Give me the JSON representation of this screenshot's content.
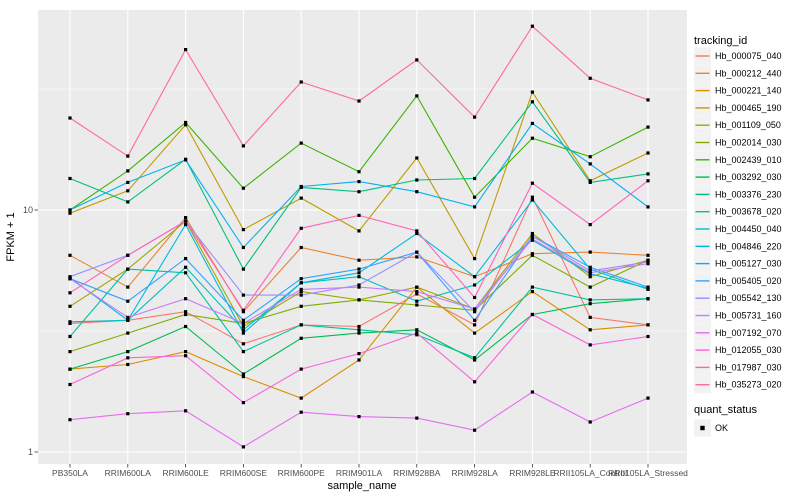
{
  "figure": {
    "x_axis_title": "sample_name",
    "y_axis_title": "FPKM + 1",
    "y_tick_labels": [
      "10",
      "1"
    ],
    "legend_tracking_title": "tracking_id",
    "legend_quant_title": "quant_status",
    "legend_quant_items": [
      "OK"
    ]
  },
  "colors": {
    "panel_bg": "#EBEBEB",
    "grid": "#FFFFFF",
    "tick_mark": "#333333",
    "tick_label": "#4D4D4D",
    "axis_title": "#000000",
    "legend_key_bg": "#F2F2F2",
    "marker": "#000000"
  },
  "chart_data": {
    "type": "line",
    "title": "",
    "xlabel": "sample_name",
    "ylabel": "FPKM + 1",
    "y_scale": "log10",
    "y_axis_ticks": [
      10,
      1
    ],
    "y_minor_gridlines": [
      31.623,
      3.1623
    ],
    "ylim_approx": [
      1,
      65
    ],
    "grid": true,
    "legend_position": "right",
    "marker_legend": {
      "title": "quant_status",
      "items": [
        {
          "label": "OK",
          "shape": "filled-black-square"
        }
      ]
    },
    "categories": [
      "PB350LA",
      "RRIM600LA",
      "RRIM600LE",
      "RRIM600SE",
      "RRIM600PE",
      "RRIM901LA",
      "RRIM928BA",
      "RRIM928LA",
      "RRIM928LE",
      "RRII105LA_Control",
      "RRII105LA_Stressed"
    ],
    "series": [
      {
        "name": "Hb_000075_040",
        "color": "#F8766D",
        "values": [
          3.4,
          3.5,
          3.8,
          2.8,
          3.35,
          3.3,
          4.5,
          3.35,
          11.3,
          3.6,
          3.35
        ]
      },
      {
        "name": "Hb_000212_440",
        "color": "#EA8331",
        "values": [
          6.5,
          4.8,
          9.3,
          3.8,
          7.0,
          6.2,
          6.4,
          5.3,
          6.6,
          6.7,
          6.5
        ]
      },
      {
        "name": "Hb_000221_140",
        "color": "#D89000",
        "values": [
          2.2,
          2.3,
          2.6,
          2.05,
          1.67,
          2.4,
          4.8,
          3.1,
          4.6,
          3.2,
          3.35
        ]
      },
      {
        "name": "Hb_000465_190",
        "color": "#C09B00",
        "values": [
          9.7,
          12.0,
          22.5,
          8.3,
          11.2,
          8.2,
          16.4,
          6.3,
          30.7,
          13.2,
          17.2
        ]
      },
      {
        "name": "Hb_001109_050",
        "color": "#A3A500",
        "values": [
          4.0,
          5.7,
          9.0,
          3.3,
          4.6,
          4.25,
          4.8,
          3.9,
          8.0,
          5.3,
          6.2
        ]
      },
      {
        "name": "Hb_002014_030",
        "color": "#7CAE00",
        "values": [
          2.6,
          3.1,
          3.7,
          3.4,
          4.0,
          4.25,
          4.05,
          3.85,
          6.5,
          4.8,
          6.2
        ]
      },
      {
        "name": "Hb_002439_010",
        "color": "#39B600",
        "values": [
          10.0,
          14.5,
          23.0,
          12.3,
          18.9,
          14.4,
          29.6,
          11.3,
          19.8,
          16.6,
          22.0
        ]
      },
      {
        "name": "Hb_003292_030",
        "color": "#00BB4E",
        "values": [
          2.2,
          2.6,
          3.3,
          2.1,
          2.95,
          3.1,
          3.2,
          2.4,
          3.7,
          4.1,
          4.3
        ]
      },
      {
        "name": "Hb_003376_230",
        "color": "#00BF7D",
        "values": [
          13.5,
          10.8,
          16.2,
          5.7,
          12.4,
          11.9,
          13.3,
          13.5,
          28.0,
          13.0,
          14.1
        ]
      },
      {
        "name": "Hb_003678_020",
        "color": "#00C1A3",
        "values": [
          3.0,
          5.7,
          5.5,
          2.6,
          3.35,
          3.2,
          3.05,
          2.45,
          4.8,
          4.25,
          4.3
        ]
      },
      {
        "name": "Hb_004450_040",
        "color": "#00BFC4",
        "values": [
          3.45,
          3.5,
          5.8,
          3.2,
          5.0,
          5.3,
          4.2,
          4.9,
          7.5,
          5.45,
          4.75
        ]
      },
      {
        "name": "Hb_004846_220",
        "color": "#00BAE0",
        "values": [
          5.25,
          3.5,
          8.7,
          3.1,
          5.0,
          5.5,
          8.0,
          5.3,
          11.0,
          5.7,
          4.7
        ]
      },
      {
        "name": "Hb_005127_030",
        "color": "#00B0F6",
        "values": [
          10.0,
          13.0,
          16.1,
          7.0,
          12.5,
          13.1,
          11.9,
          10.3,
          22.8,
          15.5,
          10.3
        ]
      },
      {
        "name": "Hb_005405_020",
        "color": "#35A2FF",
        "values": [
          5.2,
          4.2,
          6.3,
          3.5,
          5.2,
          5.7,
          6.7,
          3.5,
          7.8,
          5.8,
          4.8
        ]
      },
      {
        "name": "Hb_005542_130",
        "color": "#9590FF",
        "values": [
          5.3,
          6.5,
          9.0,
          4.45,
          4.45,
          4.9,
          6.7,
          3.8,
          7.8,
          5.6,
          6.1
        ]
      },
      {
        "name": "Hb_005731_160",
        "color": "#C77CFF",
        "values": [
          5.2,
          3.6,
          4.3,
          3.4,
          4.7,
          4.8,
          4.6,
          3.9,
          7.6,
          5.5,
          6.0
        ]
      },
      {
        "name": "Hb_007192_070",
        "color": "#E76BF3",
        "values": [
          1.36,
          1.44,
          1.48,
          1.05,
          1.46,
          1.4,
          1.38,
          1.23,
          1.77,
          1.33,
          1.67
        ]
      },
      {
        "name": "Hb_012055_030",
        "color": "#FA62DB",
        "values": [
          1.9,
          2.45,
          2.5,
          1.6,
          2.2,
          2.55,
          3.1,
          1.95,
          3.7,
          2.77,
          3.0
        ]
      },
      {
        "name": "Hb_017987_030",
        "color": "#FF62BC",
        "values": [
          4.55,
          6.5,
          9.0,
          3.85,
          8.4,
          9.5,
          8.2,
          4.35,
          12.9,
          8.7,
          13.2
        ]
      },
      {
        "name": "Hb_035273_020",
        "color": "#FF6A98",
        "values": [
          24.0,
          16.7,
          46.0,
          18.4,
          33.8,
          28.2,
          41.7,
          24.2,
          57.5,
          35.0,
          28.5
        ]
      }
    ]
  }
}
